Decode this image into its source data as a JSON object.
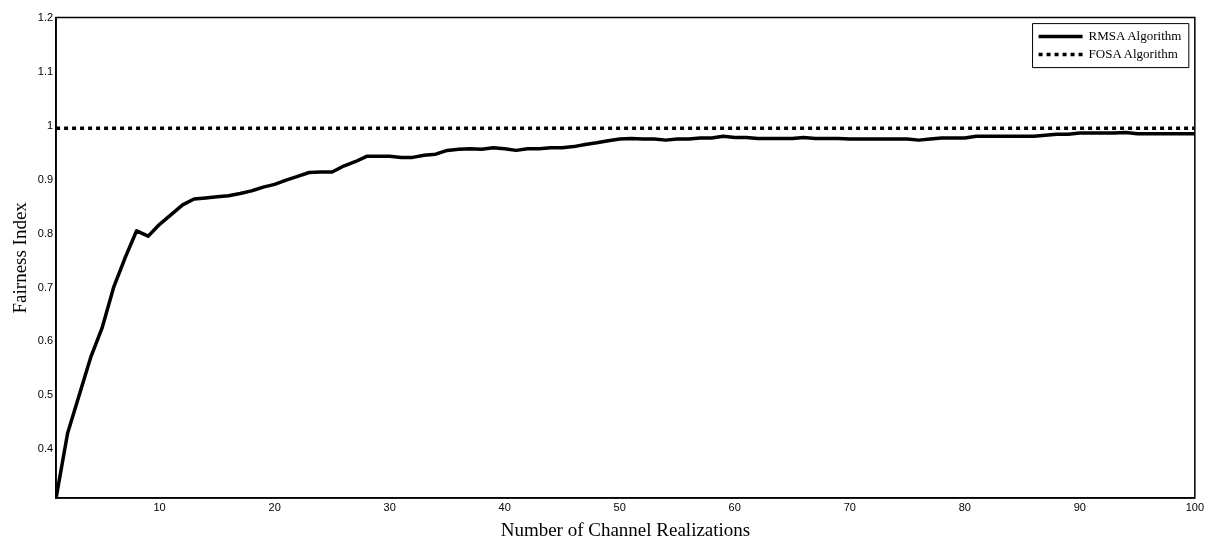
{
  "chart_data": {
    "type": "line",
    "xlabel": "Number of Channel Realizations",
    "ylabel": "Fairness Index",
    "x": [
      1,
      2,
      3,
      4,
      5,
      6,
      7,
      8,
      9,
      10,
      11,
      12,
      13,
      14,
      15,
      16,
      17,
      18,
      19,
      20,
      21,
      22,
      23,
      24,
      25,
      26,
      27,
      28,
      29,
      30,
      31,
      32,
      33,
      34,
      35,
      36,
      37,
      38,
      39,
      40,
      41,
      42,
      43,
      44,
      45,
      46,
      47,
      48,
      49,
      50,
      51,
      52,
      53,
      54,
      55,
      56,
      57,
      58,
      59,
      60,
      61,
      62,
      63,
      64,
      65,
      66,
      67,
      68,
      69,
      70,
      71,
      72,
      73,
      74,
      75,
      76,
      77,
      78,
      79,
      80,
      81,
      82,
      83,
      84,
      85,
      86,
      87,
      88,
      89,
      90,
      91,
      92,
      93,
      94,
      95,
      96,
      97,
      98,
      99,
      100
    ],
    "series": [
      {
        "name": "RMSA Algorithm",
        "color": "#000000",
        "line_style": "solid",
        "values": [
          0.31,
          0.43,
          0.5,
          0.57,
          0.625,
          0.7,
          0.755,
          0.805,
          0.795,
          0.817,
          0.835,
          0.853,
          0.864,
          0.866,
          0.868,
          0.87,
          0.874,
          0.879,
          0.886,
          0.891,
          0.899,
          0.906,
          0.913,
          0.914,
          0.914,
          0.925,
          0.933,
          0.943,
          0.943,
          0.943,
          0.941,
          0.941,
          0.945,
          0.947,
          0.954,
          0.956,
          0.957,
          0.956,
          0.959,
          0.957,
          0.954,
          0.957,
          0.957,
          0.959,
          0.959,
          0.961,
          0.965,
          0.968,
          0.972,
          0.975,
          0.976,
          0.975,
          0.975,
          0.973,
          0.975,
          0.975,
          0.977,
          0.977,
          0.98,
          0.978,
          0.978,
          0.976,
          0.976,
          0.976,
          0.976,
          0.978,
          0.976,
          0.976,
          0.976,
          0.975,
          0.975,
          0.975,
          0.975,
          0.975,
          0.975,
          0.973,
          0.975,
          0.977,
          0.977,
          0.977,
          0.98,
          0.98,
          0.98,
          0.98,
          0.98,
          0.98,
          0.982,
          0.984,
          0.984,
          0.986,
          0.986,
          0.986,
          0.986,
          0.987,
          0.985,
          0.985,
          0.985,
          0.985,
          0.985,
          0.985
        ]
      },
      {
        "name": "FOSA Algorithm",
        "color": "#000000",
        "line_style": "dotted",
        "x": [
          1,
          100
        ],
        "values": [
          0.995,
          0.995
        ]
      }
    ],
    "xlim": [
      1,
      100
    ],
    "xticks": [
      10,
      20,
      30,
      40,
      50,
      60,
      70,
      80,
      90,
      100
    ],
    "ylim": [
      0.31,
      1.2
    ],
    "yticks": [
      0.4,
      0.5,
      0.6,
      0.7,
      0.8,
      0.9,
      1,
      1.1,
      1.2
    ],
    "grid": false,
    "legend": "top right",
    "marker": "none"
  }
}
